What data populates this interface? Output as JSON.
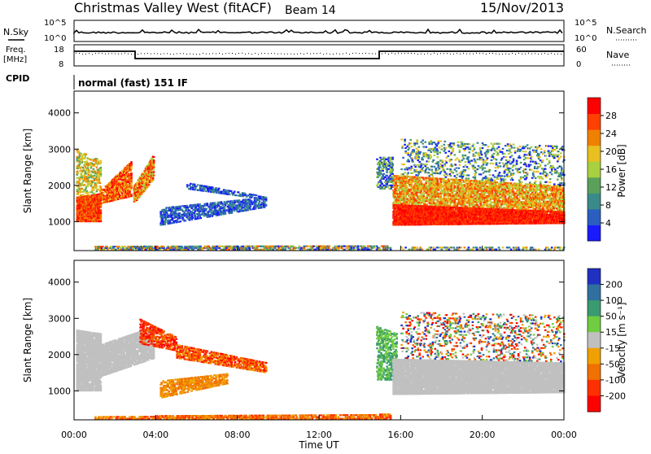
{
  "header": {
    "title": "Christmas Valley West (fitACF)",
    "beam": "Beam 14",
    "date": "15/Nov/2013"
  },
  "top_panels": {
    "nsky_label": "N.Sky",
    "nsearch_label": "N.Search",
    "freq_label_1": "Freq.",
    "freq_label_2": "[MHz]",
    "nave_label": "Nave",
    "cpid_label": "CPID",
    "cpid_value": "normal (fast) 151 IF",
    "noise_left_ticks": [
      "10^5",
      "10^0"
    ],
    "noise_right_ticks": [
      "10^5",
      "10^0"
    ],
    "freq_left_ticks": [
      "18",
      "8"
    ],
    "freq_right_ticks": [
      "60",
      "0"
    ]
  },
  "chart_data": [
    {
      "type": "heatmap",
      "panel": "power",
      "ylabel": "Slant Range [km]",
      "xlabel": "Time UT",
      "x_ticks": [
        "00:00",
        "04:00",
        "08:00",
        "12:00",
        "16:00",
        "20:00",
        "00:00"
      ],
      "y_ticks": [
        1000,
        2000,
        3000,
        4000
      ],
      "ylim": [
        200,
        4600
      ],
      "xlim_hours": [
        0,
        24
      ],
      "colorbar": {
        "label": "Power [dB]",
        "ticks": [
          4,
          8,
          12,
          16,
          20,
          24,
          28
        ],
        "range": [
          0,
          30
        ]
      },
      "colors": [
        "#1a1aff",
        "#2a5fc0",
        "#3a8a8a",
        "#5aa05a",
        "#a8d040",
        "#e8c020",
        "#f08000",
        "#ff4000",
        "#ff0000"
      ]
    },
    {
      "type": "heatmap",
      "panel": "velocity",
      "ylabel": "Slant Range [km]",
      "xlabel": "Time UT",
      "x_ticks": [
        "00:00",
        "04:00",
        "08:00",
        "12:00",
        "16:00",
        "20:00",
        "00:00"
      ],
      "y_ticks": [
        1000,
        2000,
        3000,
        4000
      ],
      "ylim": [
        200,
        4600
      ],
      "xlim_hours": [
        0,
        24
      ],
      "colorbar": {
        "label": "Velocity [m s⁻¹]",
        "ticks": [
          200,
          100,
          50,
          15,
          -15,
          -50,
          -100,
          -200
        ]
      },
      "colors": [
        "#2030c0",
        "#3070a0",
        "#3a9a70",
        "#70cc40",
        "#c0c0c0",
        "#f0a000",
        "#f07000",
        "#ff3000",
        "#ff0000"
      ]
    }
  ]
}
